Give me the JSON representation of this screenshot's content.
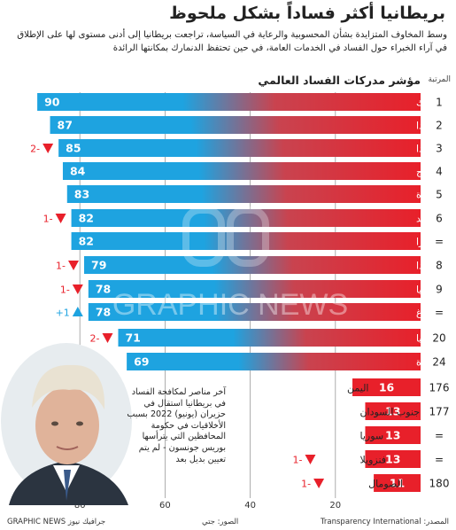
{
  "header": {
    "title": "بريطانيا أكثر فساداً بشكل ملحوظ",
    "subtitle": "وسط المخاوف المتزايدة بشأن المحسوبية والرعاية في السياسة، تراجعت بريطانيا إلى أدنى مستوى لها على الإطلاق في آراء الخبراء حول الفساد في الخدمات العامة، في حين تحتفظ الدنمارك بمكانتها الرائدة"
  },
  "rank_header": "المرتبة",
  "note": "آخر مناصر لمكافحة الفساد في بريطانيا استقال في حزيران (يونيو) 2022 بسبب الأخلاقيات في حكومة المحافظين التي يترأسها بوريس جونسون - لم يتم تعيين بديل بعد",
  "footer": {
    "source": "المصدر: Transparency International",
    "photo": "الصور: جتي",
    "logo": "GRAPHIC NEWS جرافيك نيوز"
  },
  "watermark": "GRAPHIC NEWS",
  "colors": {
    "blue": "#1ea3e0",
    "red": "#e8202a",
    "dark": "#222222"
  },
  "chart_data": {
    "type": "bar",
    "title": "مؤشر مدركات الفساد العالمي",
    "x_ticks": [
      80,
      60,
      40,
      20
    ],
    "xlim": [
      100,
      0
    ],
    "rows": [
      {
        "rank": "1",
        "country": "الدنمارك",
        "value": 90,
        "change": ""
      },
      {
        "rank": "2",
        "country": "فنلندا",
        "value": 87,
        "change": ""
      },
      {
        "rank": "3",
        "country": "نيوزيلندا",
        "value": 85,
        "change": "2-",
        "dir": "down"
      },
      {
        "rank": "4",
        "country": "النرويج",
        "value": 84,
        "change": ""
      },
      {
        "rank": "5",
        "country": "سنغافورة",
        "value": 83,
        "change": ""
      },
      {
        "rank": "6",
        "country": "السويد",
        "value": 82,
        "change": "1-",
        "dir": "down"
      },
      {
        "rank": "=",
        "country": "سويسرا",
        "value": 82,
        "change": ""
      },
      {
        "rank": "8",
        "country": "هولندا",
        "value": 79,
        "change": "1-",
        "dir": "down"
      },
      {
        "rank": "9",
        "country": "ألمانيا",
        "value": 78,
        "change": "1-",
        "dir": "down"
      },
      {
        "rank": "=",
        "country": "لوكسمبورغ",
        "value": 78,
        "change": "+1",
        "dir": "up"
      },
      {
        "rank": "20",
        "country": "بريطانيا",
        "value": 71,
        "change": "2-",
        "dir": "down"
      },
      {
        "rank": "24",
        "country": "الولايات المتحدة",
        "value": 69,
        "change": ""
      },
      {
        "rank": "176",
        "country": "اليمن",
        "value": 16,
        "change": ""
      },
      {
        "rank": "177",
        "country": "جنوب السودان",
        "value": 13,
        "change": ""
      },
      {
        "rank": "=",
        "country": "سوريا",
        "value": 13,
        "change": ""
      },
      {
        "rank": "=",
        "country": "فنزويلا",
        "value": 13,
        "change": "1-",
        "dir": "down"
      },
      {
        "rank": "180",
        "country": "الصومال",
        "value": 11,
        "change": "1-",
        "dir": "down"
      }
    ]
  }
}
